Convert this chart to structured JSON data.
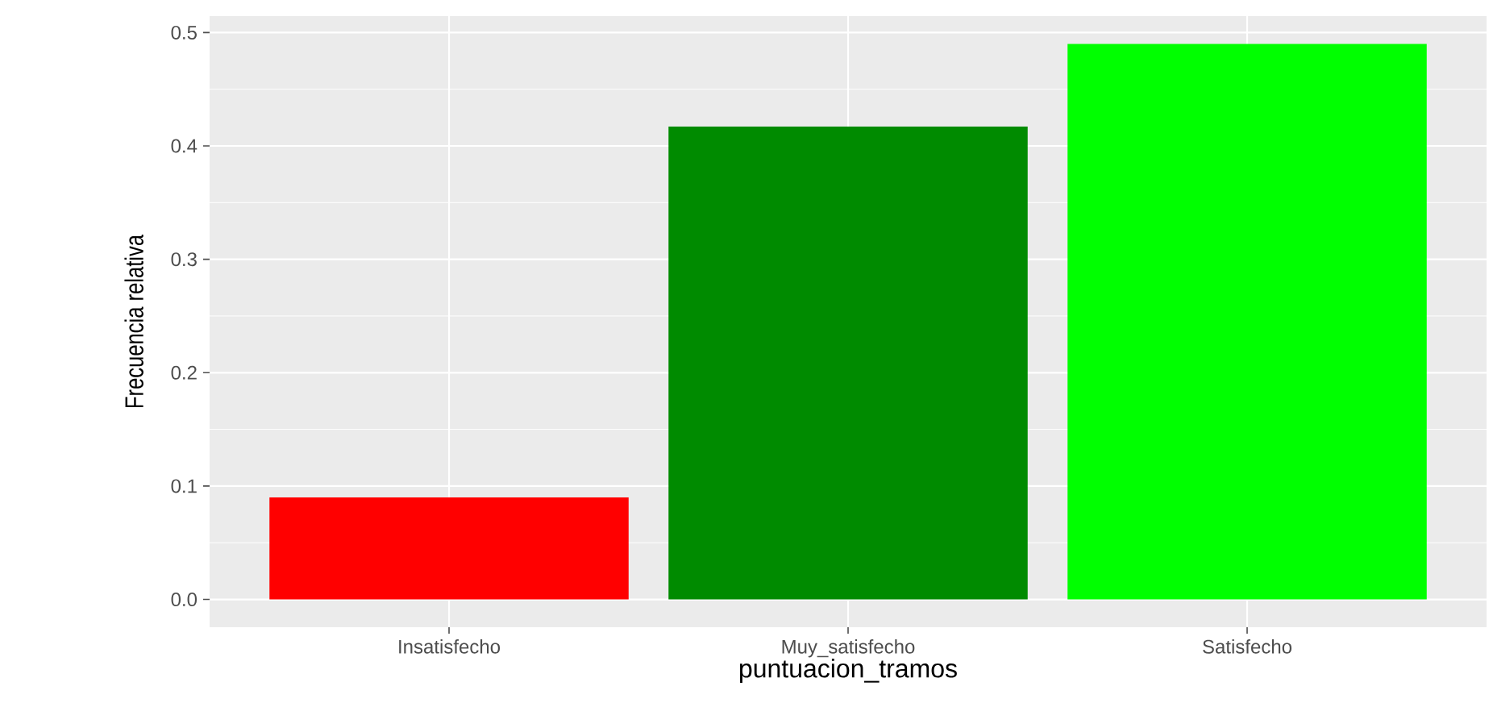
{
  "chart_data": {
    "type": "bar",
    "xlabel": "puntuacion_tramos",
    "ylabel": "Frecuencia relativa",
    "categories": [
      "Insatisfecho",
      "Muy_satisfecho",
      "Satisfecho"
    ],
    "values": [
      0.09,
      0.417,
      0.49
    ],
    "colors": [
      "#ff0000",
      "#008b00",
      "#00ff00"
    ],
    "ylim": [
      -0.0245,
      0.5145
    ],
    "yticks": [
      {
        "value": 0,
        "label": "0.0"
      },
      {
        "value": 0.1,
        "label": "0.1"
      },
      {
        "value": 0.2,
        "label": "0.2"
      },
      {
        "value": 0.3,
        "label": "0.3"
      },
      {
        "value": 0.4,
        "label": "0.4"
      },
      {
        "value": 0.5,
        "label": "0.5"
      }
    ],
    "grid": true
  }
}
